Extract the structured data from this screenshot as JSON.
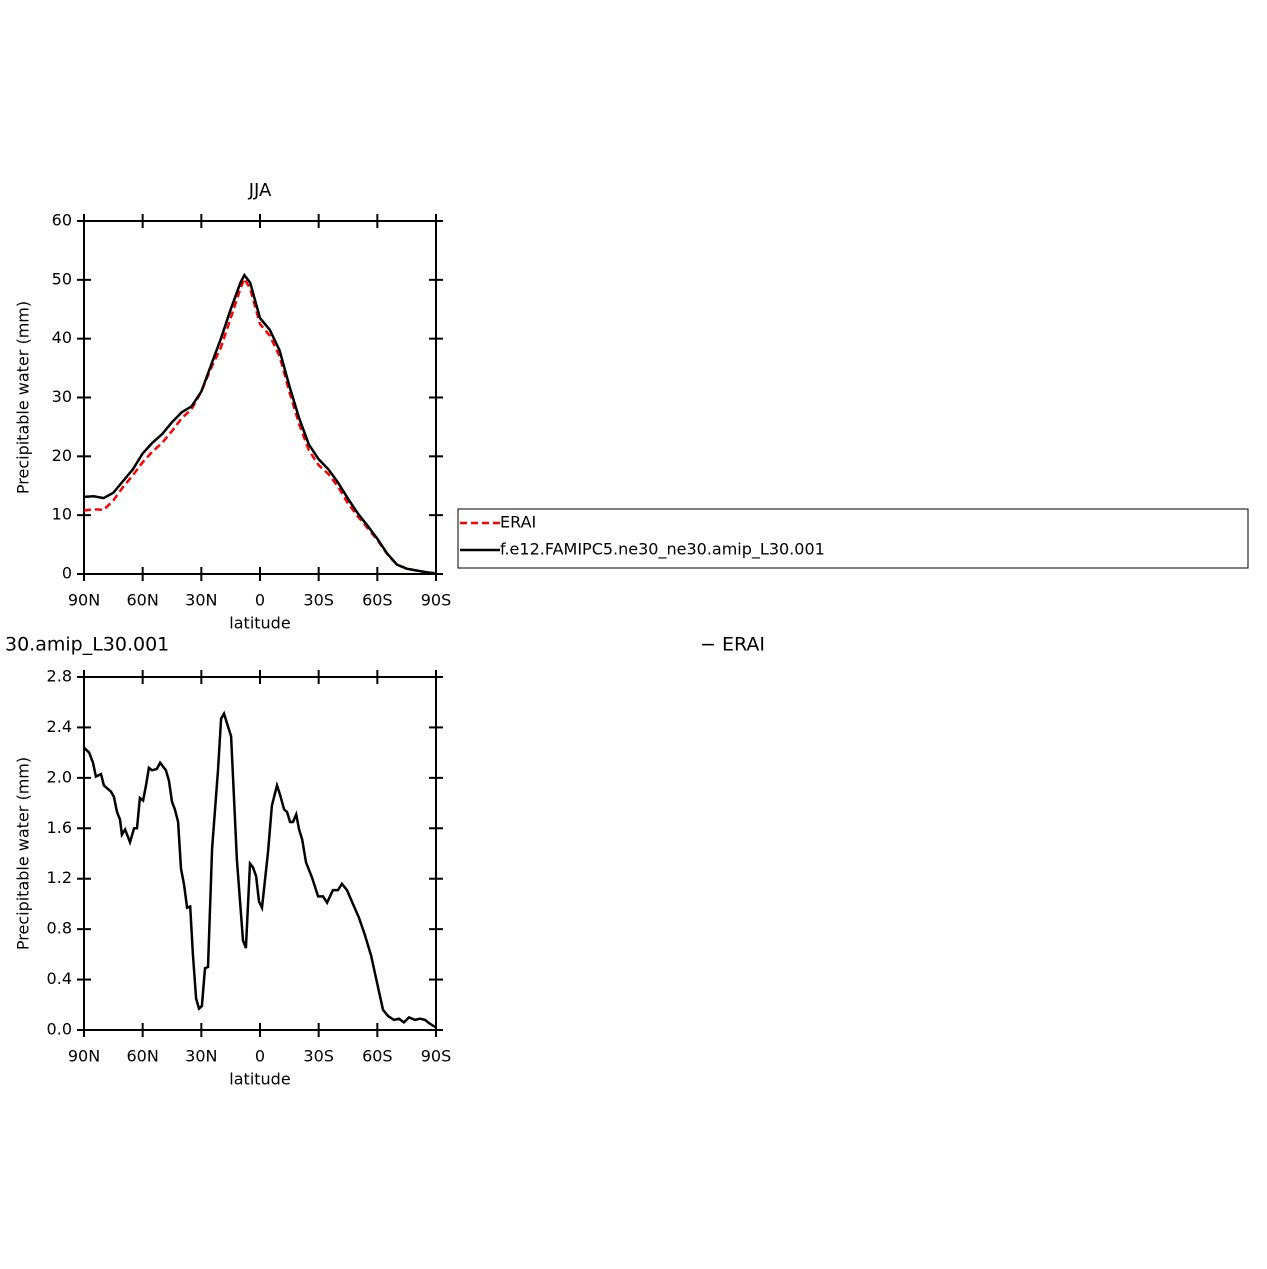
{
  "chart_data": [
    {
      "type": "line",
      "title": "JJA",
      "xlabel": "latitude",
      "ylabel": "Precipitable water (mm)",
      "x": [
        90,
        85,
        80,
        75,
        70,
        65,
        60,
        55,
        50,
        45,
        40,
        35,
        30,
        25,
        20,
        15,
        10,
        8,
        5,
        0,
        -5,
        -10,
        -15,
        -20,
        -25,
        -30,
        -35,
        -40,
        -45,
        -50,
        -55,
        -60,
        -65,
        -70,
        -75,
        -80,
        -85,
        -90
      ],
      "series": [
        {
          "name": "ERAI",
          "color": "#ff0000",
          "dash": true,
          "values": [
            10.8,
            11,
            10.9,
            12.5,
            14.8,
            16.8,
            19,
            20.8,
            22.3,
            24.3,
            26.5,
            28,
            31,
            35,
            38.5,
            43.5,
            48.5,
            50.2,
            48.5,
            42.5,
            40.5,
            37,
            31,
            25.5,
            21,
            18.5,
            17,
            14.8,
            12,
            9.8,
            7.8,
            5.8,
            3.4,
            1.6,
            0.9,
            0.6,
            0.3,
            0.1
          ]
        },
        {
          "name": "f.e12.FAMIPC5.ne30_ne30.amip_L30.001",
          "color": "#000000",
          "dash": false,
          "values": [
            13.1,
            13.2,
            12.9,
            13.8,
            15.8,
            17.8,
            20.5,
            22.3,
            23.8,
            25.8,
            27.5,
            28.5,
            31,
            35.5,
            40,
            45,
            49.5,
            50.8,
            49.5,
            43.5,
            41.5,
            38,
            32,
            26.5,
            22,
            19.5,
            17.8,
            15.5,
            12.8,
            10.3,
            8.2,
            6,
            3.5,
            1.6,
            0.9,
            0.6,
            0.3,
            0.1
          ]
        }
      ],
      "xlim": [
        90,
        -90
      ],
      "xticks": [
        {
          "value": 90,
          "label": "90N"
        },
        {
          "value": 60,
          "label": "60N"
        },
        {
          "value": 30,
          "label": "30N"
        },
        0,
        {
          "value": -30,
          "label": "30S"
        },
        {
          "value": -60,
          "label": "60S"
        },
        {
          "value": -90,
          "label": "90S"
        }
      ],
      "ylim": [
        0,
        60
      ],
      "yticks": [
        0,
        10,
        20,
        30,
        40,
        50,
        60
      ],
      "legend": true
    },
    {
      "type": "line",
      "title": "30.amip_L30.001",
      "title_right": "− ERAI",
      "xlabel": "latitude",
      "ylabel": "Precipitable water (mm)",
      "x": [
        90,
        87.4,
        85.4,
        83.9,
        81.3,
        79.8,
        76.2,
        74.7,
        73.1,
        71.6,
        70.6,
        69,
        66.5,
        64.4,
        62.9,
        61.4,
        59.8,
        58.3,
        56.8,
        55.2,
        52.7,
        51.1,
        48.1,
        46.6,
        45,
        43.5,
        41.9,
        40.4,
        38.8,
        37.3,
        35.7,
        34.3,
        32.7,
        31.2,
        29.7,
        28.1,
        26.6,
        24.5,
        21.5,
        19.9,
        18.4,
        16.8,
        14.8,
        11.8,
        8.7,
        7.2,
        5.1,
        3.6,
        2,
        0.5,
        -1,
        -4.1,
        -6.1,
        -8.7,
        -10.2,
        -12.3,
        -13.8,
        -15.4,
        -16.9,
        -18.5,
        -20,
        -21.6,
        -23.5,
        -26.6,
        -29.7,
        -32.2,
        -34.3,
        -37.3,
        -39.9,
        -41.9,
        -44.5,
        -47.5,
        -50.6,
        -53.7,
        -56.8,
        -59.8,
        -62.9,
        -65.5,
        -68.5,
        -71.1,
        -73.6,
        -76.2,
        -79.3,
        -81.8,
        -84.4,
        -86.9,
        -90
      ],
      "series": [
        {
          "color": "#000000",
          "dash": false,
          "values": [
            2.24,
            2.2,
            2.12,
            2.01,
            2.03,
            1.94,
            1.89,
            1.85,
            1.73,
            1.67,
            1.55,
            1.59,
            1.49,
            1.6,
            1.6,
            1.84,
            1.82,
            1.94,
            2.08,
            2.06,
            2.07,
            2.12,
            2.06,
            1.98,
            1.81,
            1.75,
            1.65,
            1.28,
            1.15,
            0.97,
            0.98,
            0.6,
            0.25,
            0.17,
            0.19,
            0.49,
            0.5,
            1.44,
            2.06,
            2.47,
            2.51,
            2.43,
            2.33,
            1.35,
            0.71,
            0.65,
            1.32,
            1.29,
            1.22,
            1.02,
            0.97,
            1.41,
            1.78,
            1.94,
            1.87,
            1.75,
            1.73,
            1.65,
            1.65,
            1.71,
            1.59,
            1.51,
            1.33,
            1.21,
            1.06,
            1.06,
            1.01,
            1.11,
            1.11,
            1.16,
            1.11,
            1,
            0.89,
            0.75,
            0.59,
            0.38,
            0.16,
            0.11,
            0.08,
            0.09,
            0.06,
            0.1,
            0.08,
            0.09,
            0.08,
            0.05,
            0.02
          ]
        }
      ],
      "xlim": [
        90,
        -90
      ],
      "xticks": [
        {
          "value": 90,
          "label": "90N"
        },
        {
          "value": 60,
          "label": "60N"
        },
        {
          "value": 30,
          "label": "30N"
        },
        0,
        {
          "value": -30,
          "label": "30S"
        },
        {
          "value": -60,
          "label": "60S"
        },
        {
          "value": -90,
          "label": "90S"
        }
      ],
      "ylim": [
        0,
        2.8
      ],
      "yticks": [
        {
          "value": 0,
          "label": "0.0"
        },
        {
          "value": 0.4,
          "label": "0.4"
        },
        {
          "value": 0.8,
          "label": "0.8"
        },
        {
          "value": 1.2,
          "label": "1.2"
        },
        {
          "value": 1.6,
          "label": "1.6"
        },
        {
          "value": 2,
          "label": "2.0"
        },
        {
          "value": 2.4,
          "label": "2.4"
        },
        {
          "value": 2.8,
          "label": "2.8"
        }
      ],
      "legend": false
    }
  ]
}
